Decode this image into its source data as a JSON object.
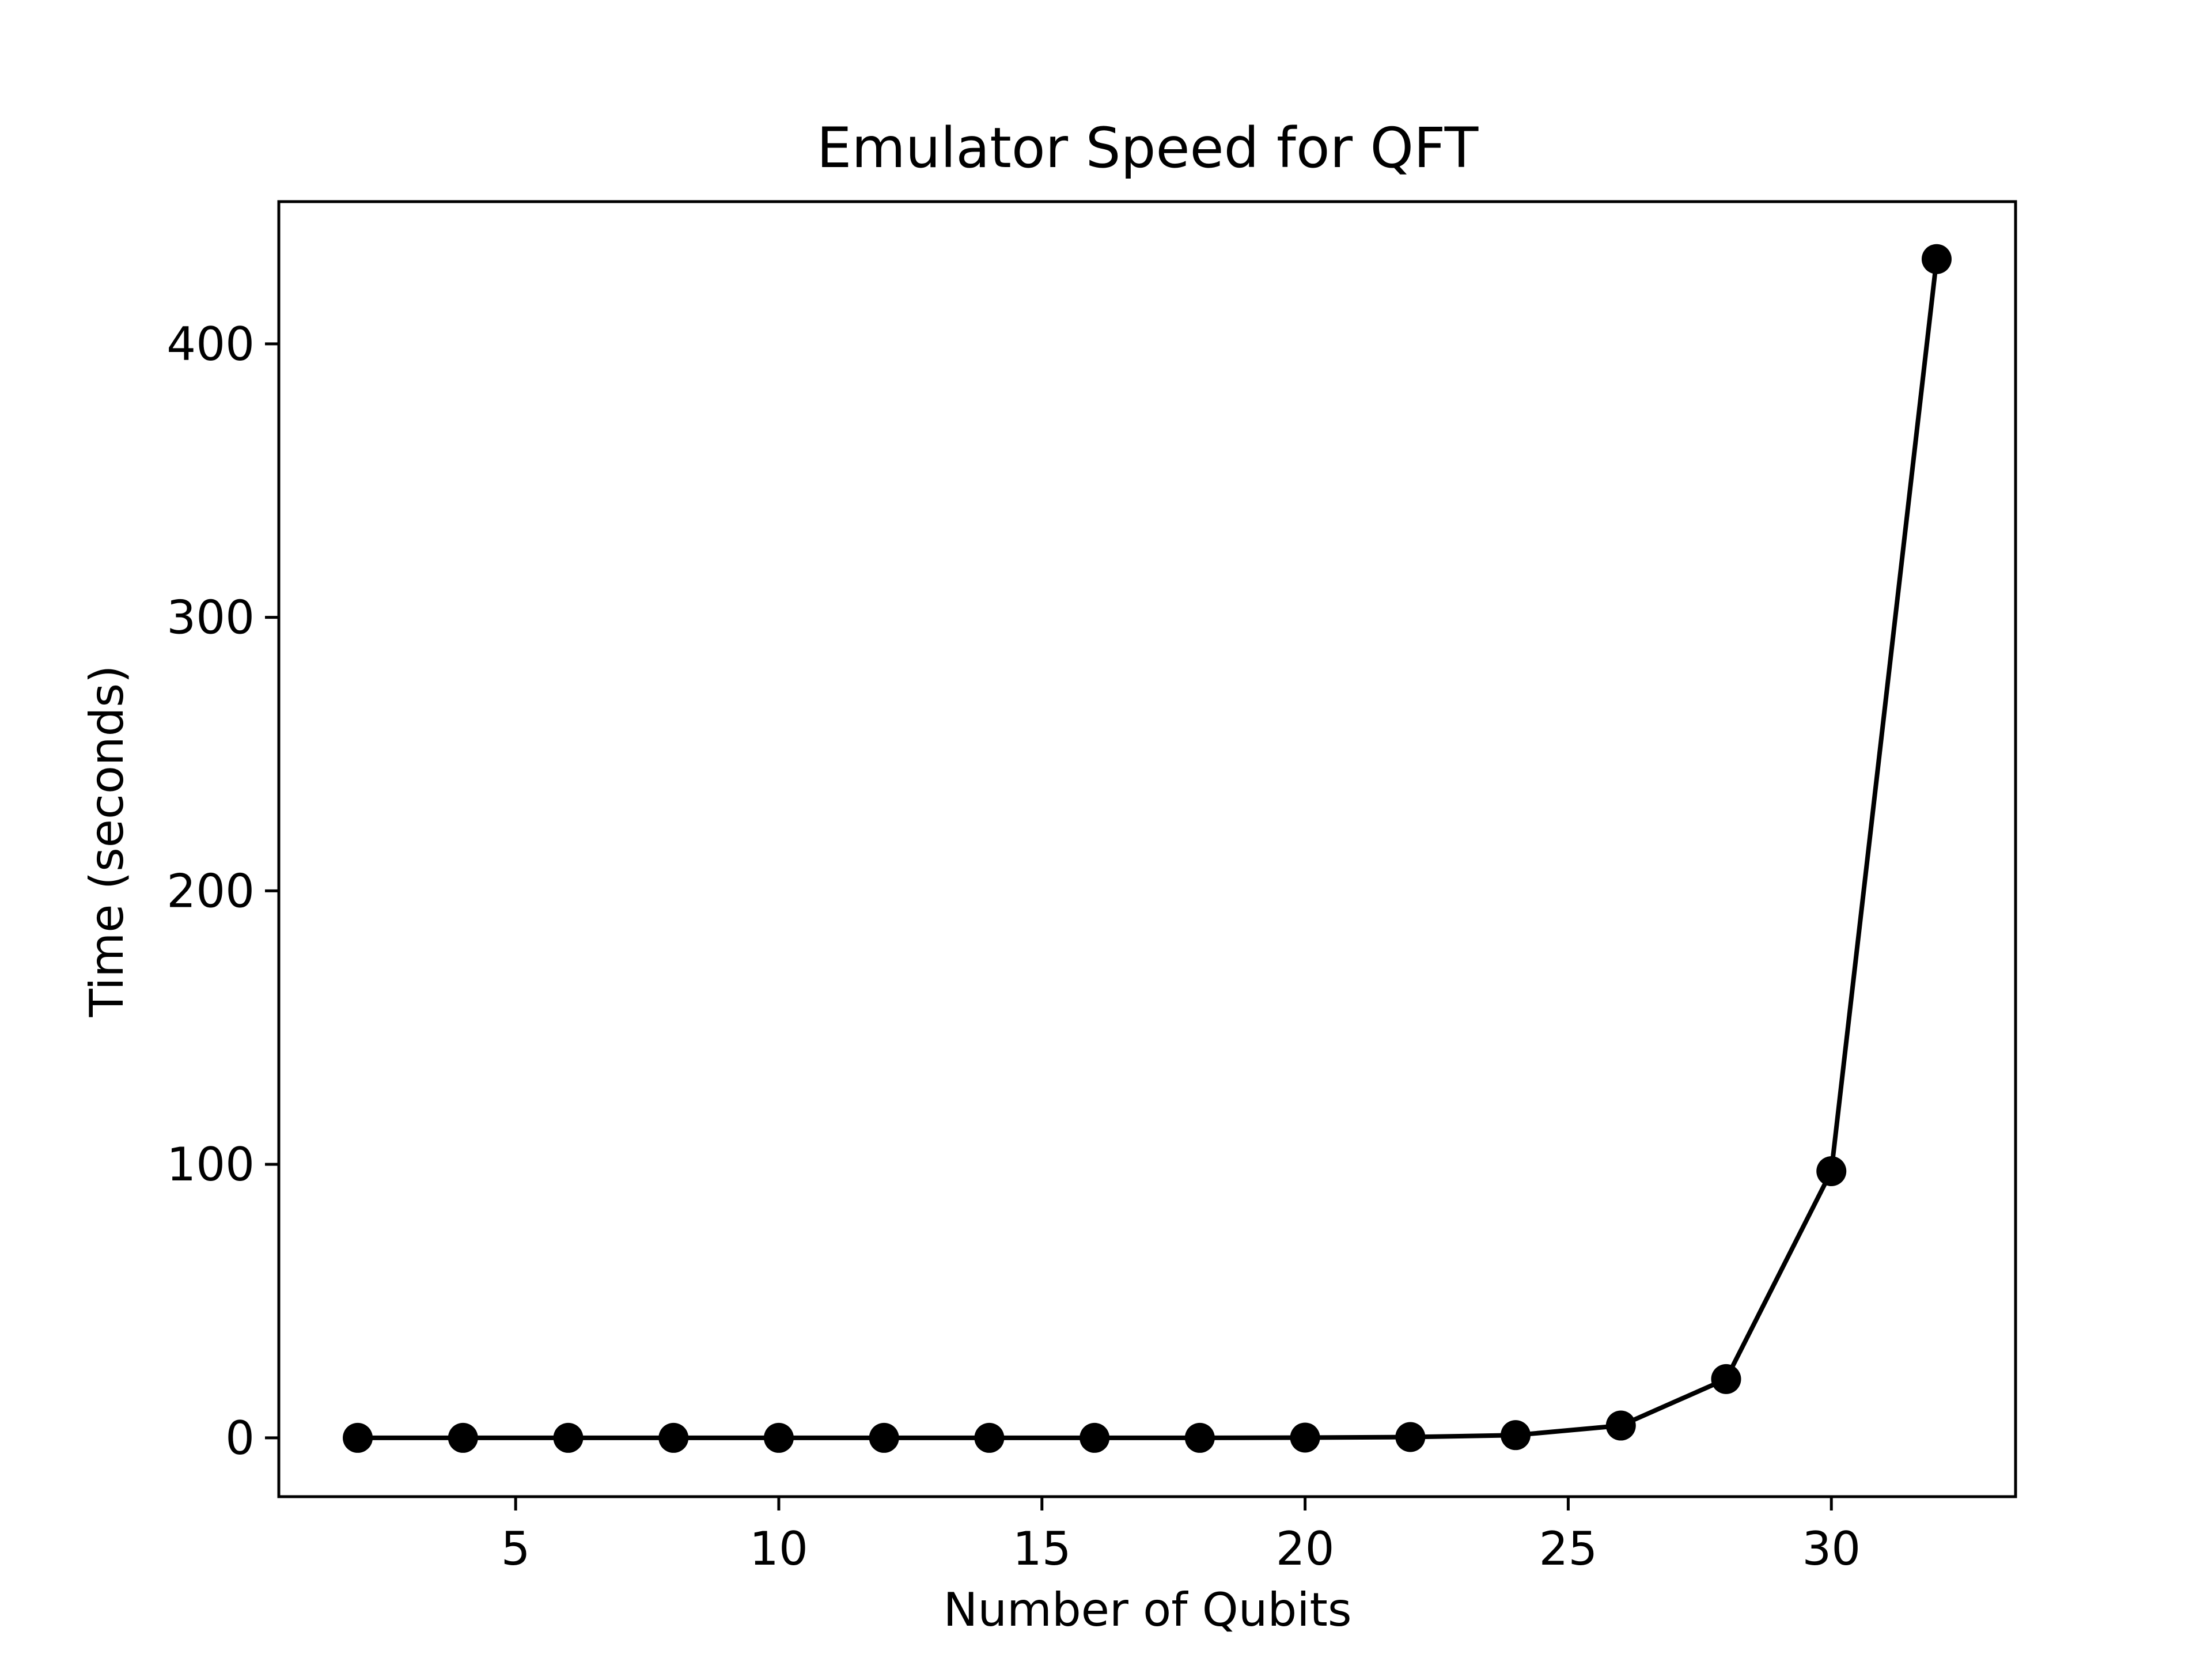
{
  "chart_data": {
    "type": "line",
    "title": "Emulator Speed for QFT",
    "xlabel": "Number of Qubits",
    "ylabel": "Time (seconds)",
    "xlim": [
      0.5,
      33.5
    ],
    "ylim": [
      -21.5,
      452
    ],
    "x_ticks": [
      5,
      10,
      15,
      20,
      25,
      30
    ],
    "y_ticks": [
      0,
      100,
      200,
      300,
      400
    ],
    "grid": false,
    "legend": "none",
    "series": [
      {
        "color": "#000000",
        "marker": "circle",
        "x": [
          2,
          4,
          6,
          8,
          10,
          12,
          14,
          16,
          18,
          20,
          22,
          24,
          26,
          28,
          30,
          32
        ],
        "y": [
          0,
          0,
          0,
          0,
          0,
          0,
          0,
          0,
          0,
          0.1,
          0.3,
          1,
          4.5,
          21.5,
          97.5,
          431
        ]
      }
    ]
  }
}
